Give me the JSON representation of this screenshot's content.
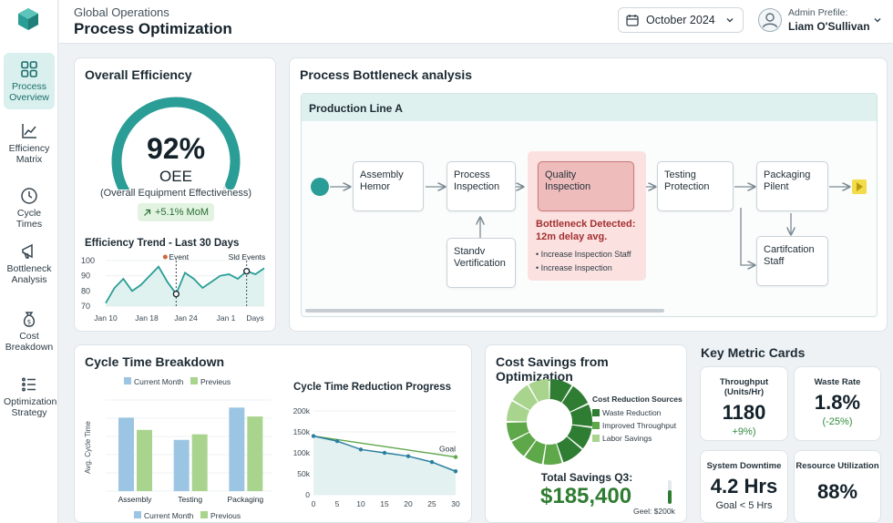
{
  "nav": {
    "items": [
      {
        "label1": "Process",
        "label2": "Overview"
      },
      {
        "label1": "Efficiency",
        "label2": "Matrix"
      },
      {
        "label1": "Cycle Times",
        "label2": ""
      },
      {
        "label1": "Bottleneck",
        "label2": "Analysis"
      },
      {
        "label1": "Cost",
        "label2": "Breakdown"
      },
      {
        "label1": "Optimization",
        "label2": "Strategy"
      }
    ]
  },
  "header": {
    "breadcrumb": "Global Operations",
    "title": "Process Optimization",
    "date": "October 2024",
    "profile_label": "Admin Prefile:",
    "profile_name": "Liam O'Sullivan"
  },
  "efficiency": {
    "title": "Overall Efficiency",
    "value": "92%",
    "gauge_fraction": 0.92,
    "metric": "OEE",
    "metric_full": "(Overall Equipment Effectiveness)",
    "change": "+5.1% MoM",
    "trend_title": "Efficiency Trend - Last 30 Days"
  },
  "bottleneck": {
    "title": "Process Bottleneck analysis",
    "line": "Production Line A",
    "nodes": {
      "assembly": [
        "Assembly",
        "Hemor"
      ],
      "process": [
        "Process",
        "Inspection"
      ],
      "quality": [
        "Quality",
        "Inspection"
      ],
      "testing": [
        "Testing",
        "Protection"
      ],
      "packaging": [
        "Packaging",
        "Pilent"
      ],
      "standv": [
        "Standv",
        "Vertification"
      ],
      "certification": [
        "Cartifcation",
        "Staff"
      ]
    },
    "detected": "Bottleneck Detected:",
    "delay": "12m delay avg.",
    "actions": [
      "Increase Inspection Staff",
      "Increase Inspection"
    ]
  },
  "cycle": {
    "title": "Cycle Time Breakdown",
    "progress_title": "Cycle Time Reduction Progress"
  },
  "savings": {
    "title": "Cost Savings from Optimization",
    "legend_title": "Cost Reduction Sources",
    "total_label": "Total Savings Q3:",
    "total": "$185,400",
    "goal": "Geel: $200k"
  },
  "metrics": {
    "title": "Key Metric Cards",
    "cards": [
      {
        "title": "Throughput (Units/Hr)",
        "value": "1180",
        "sub": "+9%)"
      },
      {
        "title": "Waste Rate",
        "value": "1.8%",
        "sub": "(-25%)"
      },
      {
        "title": "System Downtime",
        "value": "4.2 Hrs",
        "sub": "Goal < 5 Hrs"
      },
      {
        "title": "Resource Utilization",
        "value": "88%",
        "sub": ""
      }
    ]
  },
  "colors": {
    "teal": "#2a9d96",
    "bar_current": "#9cc5e4",
    "bar_previous": "#a9d48e",
    "green_dark": "#2f7d32",
    "green_mid": "#5ea84a",
    "green_light": "#a9d48e"
  },
  "chart_data": [
    {
      "type": "line",
      "title": "Efficiency Trend - Last 30 Days",
      "x_ticks": [
        "Jan 10",
        "Jan 18",
        "Jan 24",
        "Jan 1",
        "Days"
      ],
      "ylim": [
        70,
        100
      ],
      "y_ticks": [
        70,
        80,
        90,
        100
      ],
      "x": [
        0,
        1,
        2,
        3,
        4,
        5,
        6,
        7,
        8,
        9,
        10,
        11,
        12,
        13,
        14,
        15,
        16,
        17,
        18
      ],
      "values": [
        72,
        82,
        88,
        80,
        84,
        90,
        96,
        86,
        78,
        92,
        88,
        82,
        86,
        90,
        91,
        88,
        93,
        91,
        95
      ],
      "annotations": [
        {
          "label": "Event",
          "x": 8
        },
        {
          "label": "Sld Events",
          "x": 16
        }
      ]
    },
    {
      "type": "bar",
      "title": "",
      "ylabel": "Avg. Cycle Time",
      "categories": [
        "Assembly",
        "Testing",
        "Packaging"
      ],
      "series": [
        {
          "name": "Current Month",
          "values": [
            66,
            46,
            75
          ]
        },
        {
          "name": "Previous",
          "values": [
            55,
            51,
            67
          ]
        }
      ],
      "ylim": [
        0,
        90
      ],
      "legend_top": [
        "Current Month",
        "Previeus"
      ],
      "legend_bottom": [
        "Current Month",
        "Previous"
      ]
    },
    {
      "type": "line",
      "title": "Cycle Time Reduction Progress",
      "x_ticks": [
        0,
        5,
        10,
        15,
        20,
        25,
        30
      ],
      "y_ticks": [
        "0",
        "50k",
        "100k",
        "150k",
        "200k"
      ],
      "ylim": [
        0,
        200
      ],
      "series": [
        {
          "name": "",
          "x": [
            0,
            5,
            10,
            15,
            20,
            25,
            30
          ],
          "values": [
            140,
            128,
            108,
            100,
            92,
            78,
            56
          ]
        },
        {
          "name": "Goal",
          "x": [
            0,
            30
          ],
          "values": [
            140,
            90
          ]
        }
      ]
    },
    {
      "type": "pie",
      "title": "Cost Savings from Optimization",
      "labels": [
        "Waste Reduction",
        "Improved Throughput",
        "Labor Savings"
      ],
      "values": [
        45,
        30,
        25
      ]
    }
  ]
}
